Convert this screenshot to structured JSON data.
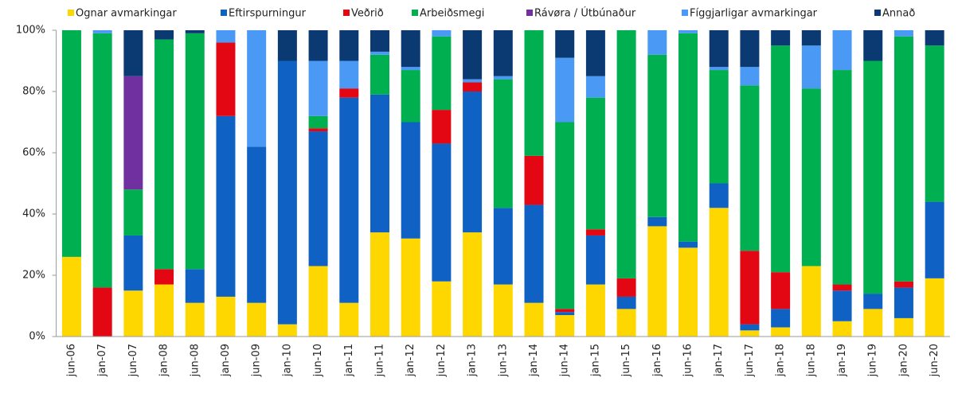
{
  "chart_data": {
    "type": "stacked_bar",
    "categories": [
      "jun-06",
      "jan-07",
      "jun-07",
      "jan-08",
      "jun-08",
      "jan-09",
      "jun-09",
      "jan-10",
      "jun-10",
      "jan-11",
      "jun-11",
      "jan-12",
      "jun-12",
      "jan-13",
      "jun-13",
      "jan-14",
      "jun-14",
      "jan-15",
      "jun-15",
      "jan-16",
      "jun-16",
      "jan-17",
      "jun-17",
      "jan-18",
      "jun-18",
      "jan-19",
      "jun-19",
      "jan-20",
      "jun-20"
    ],
    "series": [
      {
        "name": "Ognar avmarkingar",
        "color": "#ffd700",
        "values": [
          26,
          0,
          15,
          17,
          11,
          13,
          11,
          4,
          23,
          11,
          34,
          32,
          18,
          34,
          17,
          11,
          7,
          17,
          9,
          36,
          29,
          42,
          2,
          3,
          23,
          5,
          9,
          6,
          19
        ]
      },
      {
        "name": "Eftirspurningur",
        "color": "#0f62c4",
        "values": [
          0,
          0,
          18,
          0,
          11,
          59,
          51,
          86,
          44,
          67,
          45,
          38,
          45,
          46,
          25,
          32,
          1,
          16,
          4,
          3,
          2,
          8,
          2,
          6,
          0,
          10,
          5,
          10,
          25
        ]
      },
      {
        "name": "Veðrið",
        "color": "#e30613",
        "values": [
          0,
          16,
          0,
          5,
          0,
          24,
          0,
          0,
          1,
          3,
          0,
          0,
          11,
          3,
          0,
          16,
          1,
          2,
          6,
          0,
          0,
          0,
          24,
          12,
          0,
          2,
          0,
          2,
          0
        ]
      },
      {
        "name": "Arbeiðsmegi",
        "color": "#00b050",
        "values": [
          74,
          83,
          15,
          75,
          77,
          0,
          0,
          0,
          4,
          0,
          13,
          17,
          24,
          0,
          42,
          41,
          61,
          43,
          81,
          53,
          68,
          37,
          54,
          74,
          58,
          70,
          76,
          80,
          51
        ]
      },
      {
        "name": "Rávøra / Útbúnaður",
        "color": "#7030a0",
        "values": [
          0,
          0,
          37,
          0,
          0,
          0,
          0,
          0,
          0,
          0,
          0,
          0,
          0,
          0,
          0,
          0,
          0,
          0,
          0,
          0,
          0,
          0,
          0,
          0,
          0,
          0,
          0,
          0,
          0
        ]
      },
      {
        "name": "Fíggjarligar avmarkingar",
        "color": "#4a9af5",
        "values": [
          0,
          1,
          0,
          0,
          0,
          4,
          38,
          0,
          18,
          9,
          1,
          1,
          2,
          1,
          1,
          0,
          21,
          7,
          0,
          8,
          1,
          1,
          6,
          0,
          14,
          13,
          0,
          2,
          0
        ]
      },
      {
        "name": "Annað",
        "color": "#0b3a72",
        "values": [
          0,
          0,
          15,
          3,
          1,
          0,
          0,
          10,
          10,
          10,
          7,
          12,
          0,
          16,
          15,
          0,
          9,
          15,
          0,
          0,
          0,
          12,
          12,
          5,
          5,
          0,
          10,
          0,
          5
        ]
      }
    ],
    "ylim": [
      0,
      100
    ],
    "yticks": [
      {
        "value": 0,
        "label": "0%"
      },
      {
        "value": 20,
        "label": "20%"
      },
      {
        "value": 40,
        "label": "40%"
      },
      {
        "value": 60,
        "label": "60%"
      },
      {
        "value": 80,
        "label": "80%"
      },
      {
        "value": 100,
        "label": "100%"
      }
    ],
    "legend": "top"
  }
}
